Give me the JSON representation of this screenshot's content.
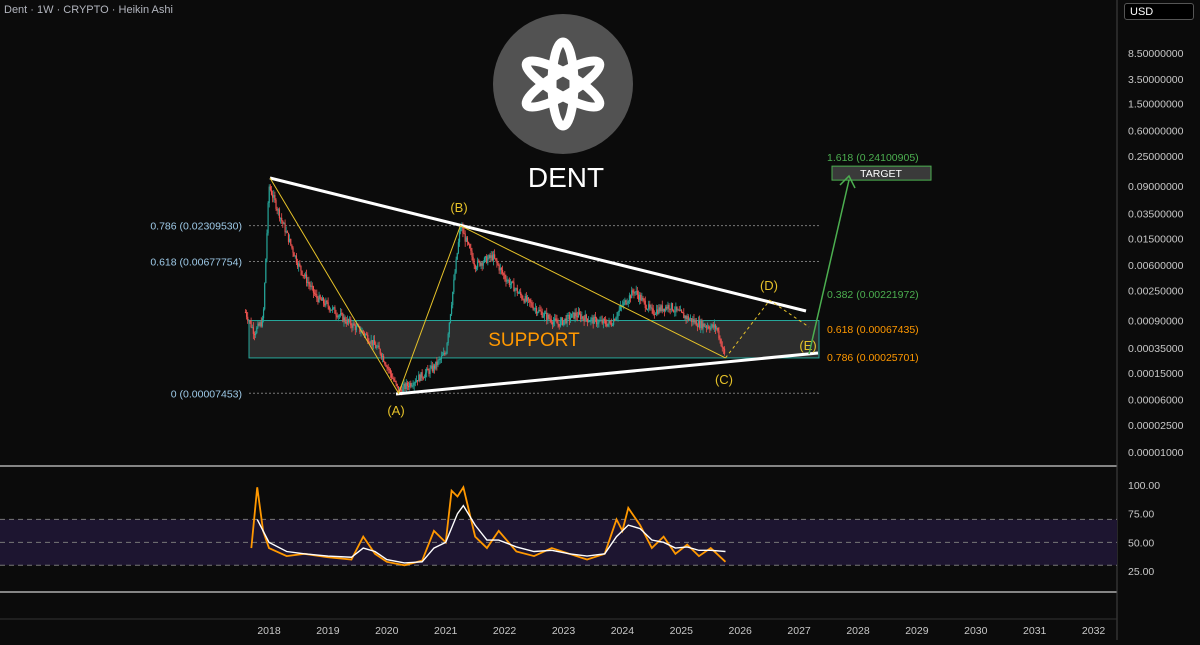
{
  "header": {
    "symbol": "Dent · 1W · CRYPTO · Heikin Ashi"
  },
  "currency": "USD",
  "logo_text": "DENT",
  "price_axis": [
    "8.50000000",
    "3.50000000",
    "1.50000000",
    "0.60000000",
    "0.25000000",
    "0.09000000",
    "0.03500000",
    "0.01500000",
    "0.00600000",
    "0.00250000",
    "0.00090000",
    "0.00035000",
    "0.00015000",
    "0.00006000",
    "0.00002500",
    "0.00001000"
  ],
  "rsi_axis": [
    "100.00",
    "75.00",
    "50.00",
    "25.00"
  ],
  "time_axis": [
    "2018",
    "2019",
    "2020",
    "2021",
    "2022",
    "2023",
    "2024",
    "2025",
    "2026",
    "2027",
    "2028",
    "2029",
    "2030",
    "2031",
    "2032"
  ],
  "fib_left": [
    {
      "label": "0.786 (0.02309530)",
      "price": 0.0230953
    },
    {
      "label": "0.618 (0.00677754)",
      "price": 0.00677754
    },
    {
      "label": "0 (0.00007453)",
      "price": 7.453e-05
    }
  ],
  "fib_right": [
    {
      "label": "1.618 (0.24100905)",
      "price": 0.24100905,
      "color": "#4caf50"
    },
    {
      "label": "0.382 (0.00221972)",
      "price": 0.00221972,
      "color": "#4caf50"
    },
    {
      "label": "0.618 (0.00067435)",
      "price": 0.00067435,
      "color": "#ff9800"
    },
    {
      "label": "0.786 (0.00025701)",
      "price": 0.00025701,
      "color": "#ff9800"
    }
  ],
  "target_label": "TARGET",
  "support_label": "SUPPORT",
  "waves": [
    {
      "label": "(A)",
      "date": 2020.2,
      "price": 7.453e-05
    },
    {
      "label": "(B)",
      "date": 2021.25,
      "price": 0.0230953
    },
    {
      "label": "(C)",
      "date": 2025.75,
      "price": 0.00025
    },
    {
      "label": "(D)",
      "date": 2026.5,
      "price": 0.0018
    },
    {
      "label": "(E)",
      "date": 2027.2,
      "price": 0.0006
    }
  ],
  "colors": {
    "up": "#26a69a",
    "down": "#ef5350",
    "wave": "#e6c229",
    "support_text": "#ff9800",
    "rsi": "#ff9800",
    "rsi_ma": "#ffffff",
    "target": "#4caf50"
  },
  "chart_data": [
    {
      "type": "line",
      "title": "Dent · 1W · CRYPTO · Heikin Ashi",
      "yscale": "log",
      "ylim": [
        1e-05,
        20
      ],
      "xlim": [
        2017.5,
        2032.5
      ],
      "series": [
        {
          "values_x": [
            2017.6,
            2017.75,
            2017.9,
            2018.0,
            2018.2,
            2018.5,
            2018.8,
            2019.0,
            2019.3,
            2019.6,
            2019.9,
            2020.2,
            2020.5,
            2020.8,
            2021.0,
            2021.25,
            2021.5,
            2021.8,
            2022.0,
            2022.3,
            2022.6,
            2022.9,
            2023.2,
            2023.5,
            2023.8,
            2024.0,
            2024.2,
            2024.5,
            2024.8,
            2025.0,
            2025.3,
            2025.6,
            2025.75
          ],
          "values": [
            0.0012,
            0.0006,
            0.0009,
            0.09,
            0.03,
            0.006,
            0.002,
            0.0015,
            0.0009,
            0.0006,
            0.0003,
            8e-05,
            0.00012,
            0.00018,
            0.0003,
            0.0231,
            0.006,
            0.008,
            0.004,
            0.002,
            0.0012,
            0.0008,
            0.0011,
            0.0009,
            0.0008,
            0.0015,
            0.0025,
            0.0012,
            0.0015,
            0.0011,
            0.0008,
            0.0007,
            0.00025
          ]
        }
      ],
      "levels": [
        0.0230953,
        0.00677754,
        7.453e-05,
        0.24100905,
        0.00221972,
        0.00067435,
        0.00025701
      ],
      "support_zone": [
        0.00025,
        0.0009
      ]
    },
    {
      "type": "line",
      "ylim": [
        15,
        110
      ],
      "xlim": [
        2017.5,
        2032.5
      ],
      "series": [
        {
          "values_x": [
            2017.7,
            2017.8,
            2017.9,
            2018.0,
            2018.3,
            2018.6,
            2019.0,
            2019.4,
            2019.6,
            2019.8,
            2020.0,
            2020.3,
            2020.6,
            2020.8,
            2021.0,
            2021.1,
            2021.2,
            2021.3,
            2021.5,
            2021.7,
            2021.9,
            2022.2,
            2022.5,
            2022.8,
            2023.1,
            2023.4,
            2023.7,
            2023.9,
            2024.0,
            2024.1,
            2024.3,
            2024.5,
            2024.7,
            2024.9,
            2025.1,
            2025.3,
            2025.5,
            2025.75
          ],
          "values": [
            45,
            98,
            60,
            45,
            38,
            40,
            37,
            35,
            55,
            40,
            33,
            30,
            34,
            60,
            50,
            95,
            90,
            98,
            55,
            45,
            60,
            42,
            38,
            45,
            40,
            35,
            40,
            70,
            60,
            80,
            65,
            45,
            55,
            40,
            48,
            38,
            45,
            33
          ]
        },
        {
          "values_x": [
            2017.8,
            2018.0,
            2018.3,
            2018.6,
            2019.0,
            2019.4,
            2019.6,
            2019.8,
            2020.0,
            2020.3,
            2020.6,
            2020.8,
            2021.0,
            2021.2,
            2021.3,
            2021.5,
            2021.7,
            2021.9,
            2022.2,
            2022.5,
            2022.8,
            2023.1,
            2023.4,
            2023.7,
            2023.9,
            2024.1,
            2024.3,
            2024.5,
            2024.7,
            2024.9,
            2025.1,
            2025.3,
            2025.5,
            2025.75
          ],
          "values": [
            70,
            50,
            42,
            40,
            38,
            37,
            45,
            42,
            35,
            32,
            33,
            45,
            50,
            75,
            82,
            65,
            52,
            52,
            46,
            42,
            43,
            40,
            38,
            40,
            55,
            65,
            62,
            52,
            50,
            45,
            46,
            43,
            43,
            42
          ]
        }
      ],
      "reference_lines": [
        70,
        50,
        30
      ]
    }
  ]
}
